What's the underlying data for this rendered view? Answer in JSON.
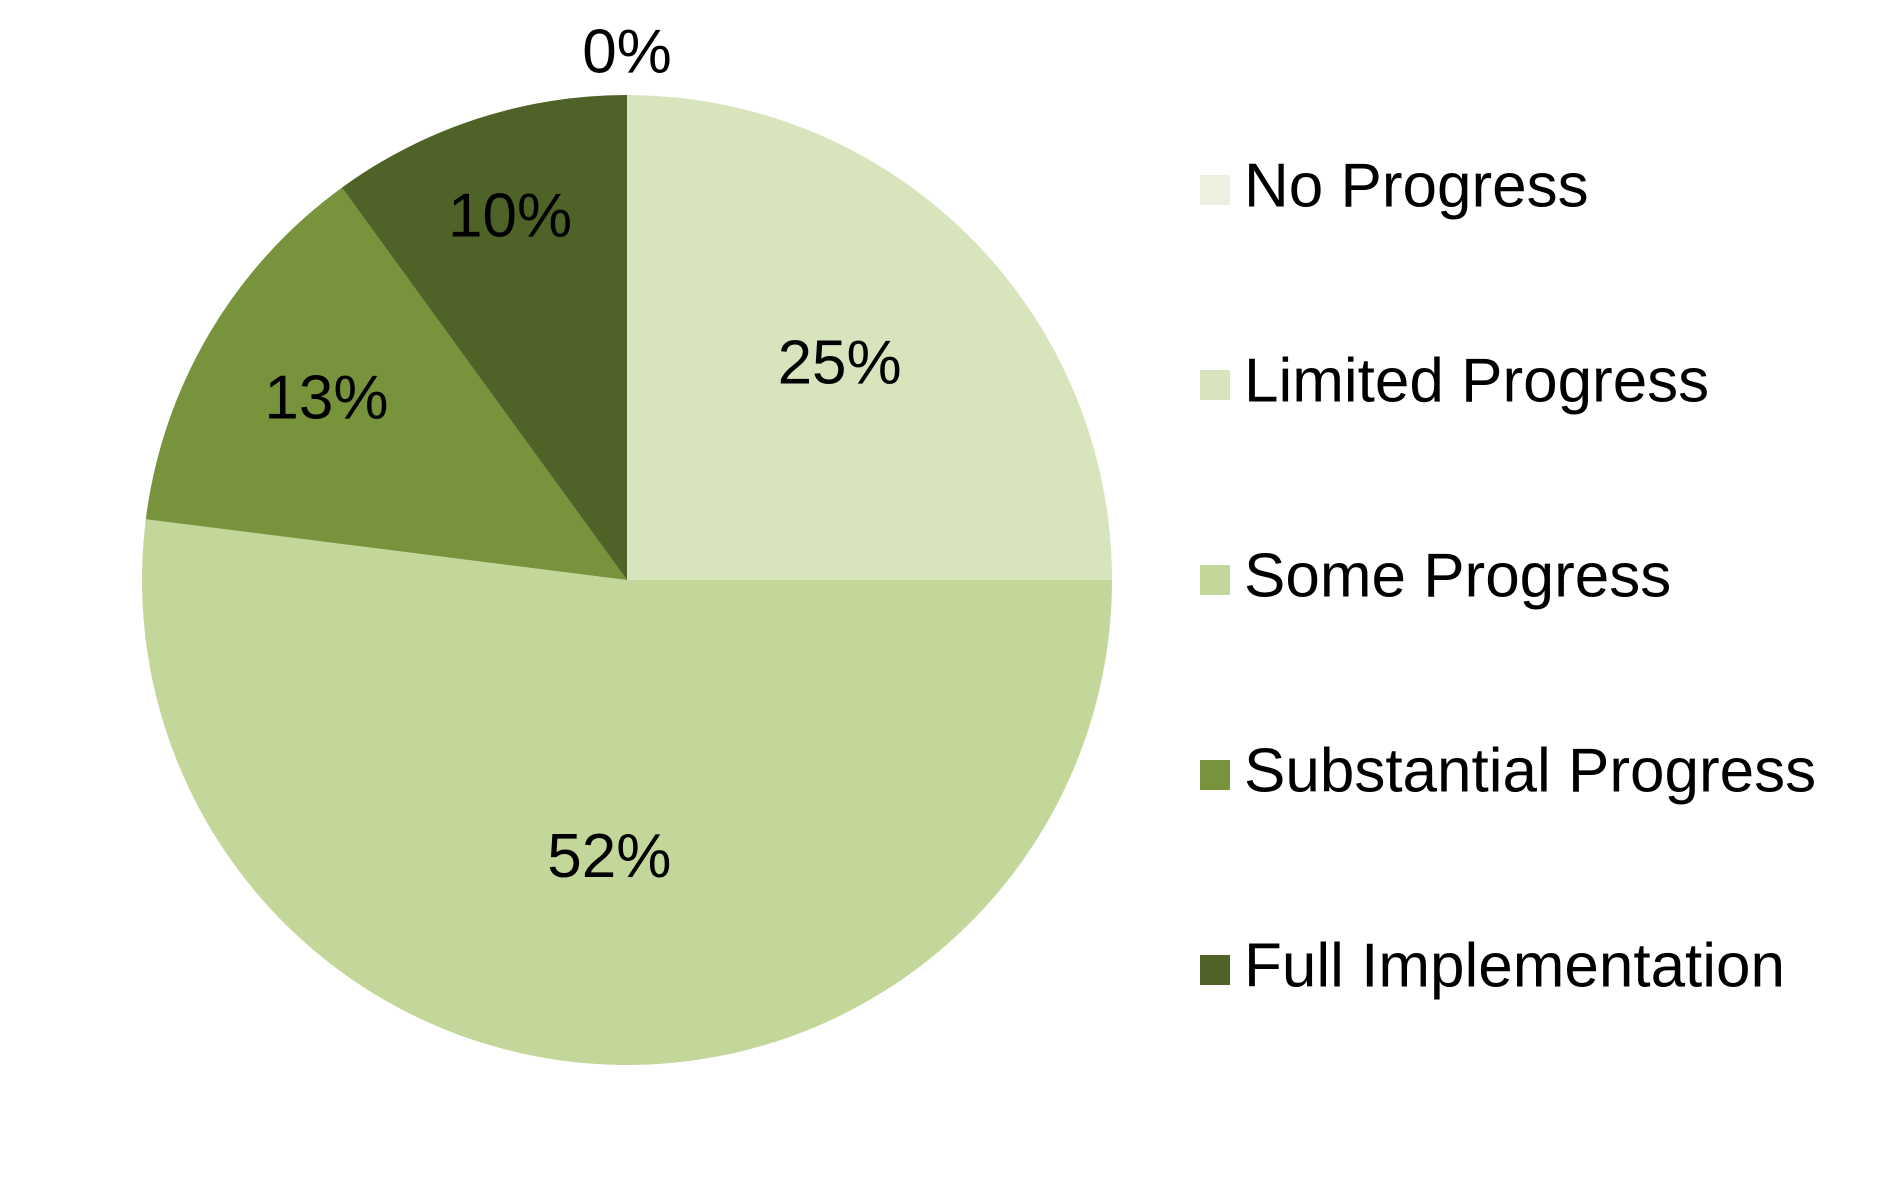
{
  "chart_data": {
    "type": "pie",
    "categories": [
      "No Progress",
      "Limited Progress",
      "Some Progress",
      "Substantial Progress",
      "Full Implementation"
    ],
    "values": [
      0,
      25,
      52,
      13,
      10
    ],
    "data_labels": [
      "0%",
      "25%",
      "52%",
      "13%",
      "10%"
    ],
    "colors": [
      "#ebf1de",
      "#d8e4bc",
      "#c4d79b",
      "#77933c",
      "#4f6228"
    ],
    "legend": {
      "position": "right",
      "entries": [
        "No Progress",
        "Limited Progress",
        "Some Progress",
        "Substantial Progress",
        "Full Implementation"
      ]
    }
  }
}
